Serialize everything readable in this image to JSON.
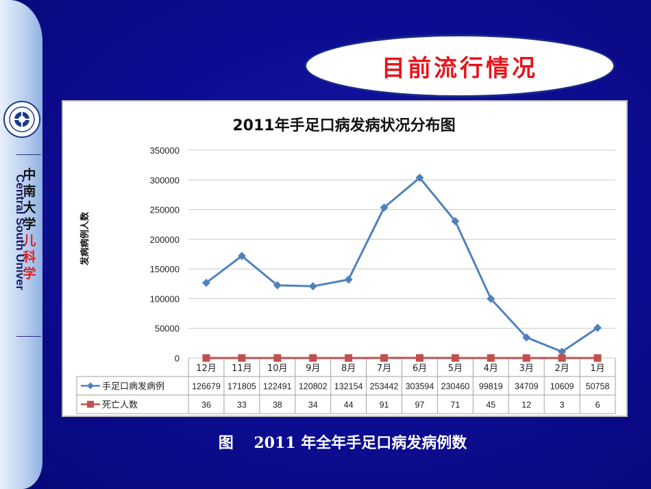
{
  "sidebar": {
    "university_cn": [
      "中",
      "南",
      "大",
      "学"
    ],
    "department_cn": [
      "儿",
      "科",
      "学"
    ],
    "university_en": "Central South University",
    "logo_text": "CENTRAL SOUTH UNIVERSITY",
    "accent_color": "#e02020"
  },
  "slide_title": "目前流行情况",
  "caption": "图　 2011 年全年手足口病发病例数",
  "chart_data": {
    "type": "line",
    "title": "2011年手足口病发病状况分布图",
    "ylabel": "发病病例人数",
    "xlabel": "",
    "categories": [
      "12月",
      "11月",
      "10月",
      "9月",
      "8月",
      "7月",
      "6月",
      "5月",
      "4月",
      "3月",
      "2月",
      "1月"
    ],
    "ylim": [
      0,
      350000
    ],
    "yticks": [
      0,
      50000,
      100000,
      150000,
      200000,
      250000,
      300000,
      350000
    ],
    "grid": true,
    "legend_placement": "data-table",
    "series": [
      {
        "name": "手足口病发病例",
        "color": "#4f81bd",
        "marker": "diamond",
        "values": [
          126679,
          171805,
          122491,
          120802,
          132154,
          253442,
          303594,
          230460,
          99819,
          34709,
          10609,
          50758
        ]
      },
      {
        "name": "死亡人数",
        "color": "#c0504d",
        "marker": "square",
        "values": [
          36,
          33,
          38,
          34,
          44,
          91,
          97,
          71,
          45,
          12,
          3,
          6
        ]
      }
    ]
  }
}
